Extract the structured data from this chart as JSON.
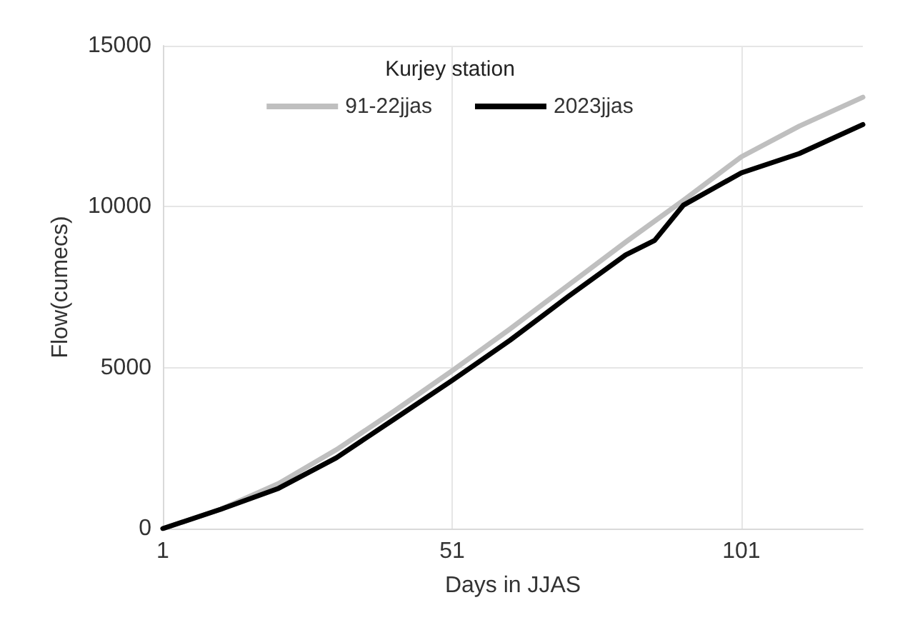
{
  "chart_data": {
    "type": "line",
    "title": "Kurjey station",
    "xlabel": "Days in JJAS",
    "ylabel": "Flow(cumecs)",
    "x": [
      1,
      11,
      21,
      31,
      41,
      51,
      61,
      71,
      81,
      86,
      91,
      101,
      111,
      122
    ],
    "series": [
      {
        "name": "91-22jjas",
        "color": "#bfbfbf",
        "x": [
          1,
          11,
          21,
          31,
          41,
          51,
          61,
          71,
          81,
          91,
          101,
          111,
          122
        ],
        "values": [
          0,
          600,
          1400,
          2450,
          3650,
          4900,
          6200,
          7550,
          8900,
          10200,
          11550,
          12500,
          13400
        ]
      },
      {
        "name": "2023jjas",
        "color": "#000000",
        "values": [
          0,
          600,
          1250,
          2200,
          3400,
          4600,
          5850,
          7200,
          8500,
          8950,
          10050,
          11050,
          11650,
          12550
        ]
      }
    ],
    "xlim": [
      1,
      122
    ],
    "xticks": [
      1,
      51,
      101
    ],
    "ylim": [
      0,
      15000
    ],
    "yticks": [
      0,
      5000,
      10000,
      15000
    ],
    "grid": true,
    "legend": "top",
    "marker": "none",
    "line_style": "solid"
  }
}
